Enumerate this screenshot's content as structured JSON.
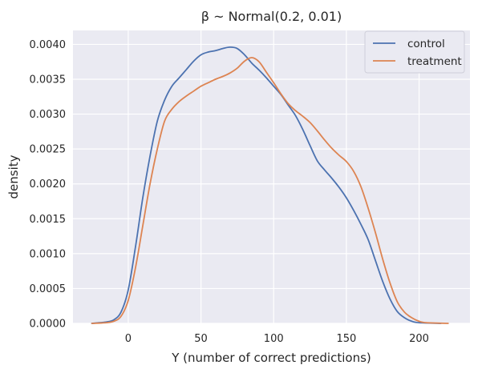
{
  "chart_data": {
    "type": "line",
    "title": "β ~ Normal(0.2, 0.01)",
    "xlabel": "Y (number of correct predictions)",
    "ylabel": "density",
    "xlim": [
      -38,
      235
    ],
    "ylim": [
      0,
      0.0042
    ],
    "x_ticks": [
      0,
      50,
      100,
      150,
      200
    ],
    "x_tick_labels": [
      "0",
      "50",
      "100",
      "150",
      "200"
    ],
    "y_ticks": [
      0,
      0.0005,
      0.001,
      0.0015,
      0.002,
      0.0025,
      0.003,
      0.0035,
      0.004
    ],
    "y_tick_labels": [
      "0.0000",
      "0.0005",
      "0.0010",
      "0.0015",
      "0.0020",
      "0.0025",
      "0.0030",
      "0.0035",
      "0.0040"
    ],
    "grid": true,
    "legend_position": "top-right",
    "series": [
      {
        "name": "control",
        "color": "#4c72b0",
        "points": [
          [
            -25,
            0
          ],
          [
            -15,
            2e-05
          ],
          [
            -10,
            5e-05
          ],
          [
            -5,
            0.00016
          ],
          [
            0,
            0.00048
          ],
          [
            5,
            0.0011
          ],
          [
            10,
            0.0018
          ],
          [
            15,
            0.0024
          ],
          [
            20,
            0.0029
          ],
          [
            25,
            0.0032
          ],
          [
            30,
            0.0034
          ],
          [
            35,
            0.00352
          ],
          [
            40,
            0.00364
          ],
          [
            45,
            0.00376
          ],
          [
            50,
            0.00385
          ],
          [
            55,
            0.00389
          ],
          [
            60,
            0.00391
          ],
          [
            65,
            0.00394
          ],
          [
            70,
            0.00396
          ],
          [
            75,
            0.00394
          ],
          [
            80,
            0.00385
          ],
          [
            85,
            0.00373
          ],
          [
            90,
            0.00363
          ],
          [
            95,
            0.00352
          ],
          [
            100,
            0.0034
          ],
          [
            105,
            0.00328
          ],
          [
            110,
            0.00313
          ],
          [
            115,
            0.00298
          ],
          [
            120,
            0.00278
          ],
          [
            125,
            0.00255
          ],
          [
            130,
            0.00233
          ],
          [
            135,
            0.0022
          ],
          [
            140,
            0.00208
          ],
          [
            145,
            0.00195
          ],
          [
            150,
            0.0018
          ],
          [
            155,
            0.00162
          ],
          [
            160,
            0.00142
          ],
          [
            165,
            0.0012
          ],
          [
            170,
            0.0009
          ],
          [
            175,
            0.0006
          ],
          [
            180,
            0.00035
          ],
          [
            185,
            0.00017
          ],
          [
            190,
            8e-05
          ],
          [
            195,
            3e-05
          ],
          [
            200,
            1e-05
          ],
          [
            215,
            0
          ]
        ]
      },
      {
        "name": "treatment",
        "color": "#dd8452",
        "points": [
          [
            -25,
            0
          ],
          [
            -15,
            1e-05
          ],
          [
            -10,
            3e-05
          ],
          [
            -5,
            0.0001
          ],
          [
            0,
            0.00033
          ],
          [
            5,
            0.0008
          ],
          [
            10,
            0.0014
          ],
          [
            15,
            0.002
          ],
          [
            20,
            0.0025
          ],
          [
            25,
            0.0029
          ],
          [
            30,
            0.00307
          ],
          [
            35,
            0.00318
          ],
          [
            40,
            0.00326
          ],
          [
            45,
            0.00333
          ],
          [
            50,
            0.0034
          ],
          [
            55,
            0.00345
          ],
          [
            60,
            0.0035
          ],
          [
            65,
            0.00354
          ],
          [
            70,
            0.00359
          ],
          [
            75,
            0.00366
          ],
          [
            80,
            0.00376
          ],
          [
            85,
            0.00381
          ],
          [
            90,
            0.00375
          ],
          [
            95,
            0.0036
          ],
          [
            100,
            0.00345
          ],
          [
            105,
            0.00329
          ],
          [
            110,
            0.00315
          ],
          [
            115,
            0.00305
          ],
          [
            120,
            0.00297
          ],
          [
            125,
            0.00288
          ],
          [
            130,
            0.00276
          ],
          [
            135,
            0.00263
          ],
          [
            140,
            0.00251
          ],
          [
            145,
            0.00241
          ],
          [
            150,
            0.00232
          ],
          [
            155,
            0.00218
          ],
          [
            160,
            0.00196
          ],
          [
            165,
            0.00165
          ],
          [
            170,
            0.0013
          ],
          [
            175,
            0.00092
          ],
          [
            180,
            0.00058
          ],
          [
            185,
            0.00031
          ],
          [
            190,
            0.00016
          ],
          [
            195,
            8e-05
          ],
          [
            200,
            3e-05
          ],
          [
            205,
            1e-05
          ],
          [
            220,
            0
          ]
        ]
      }
    ]
  }
}
